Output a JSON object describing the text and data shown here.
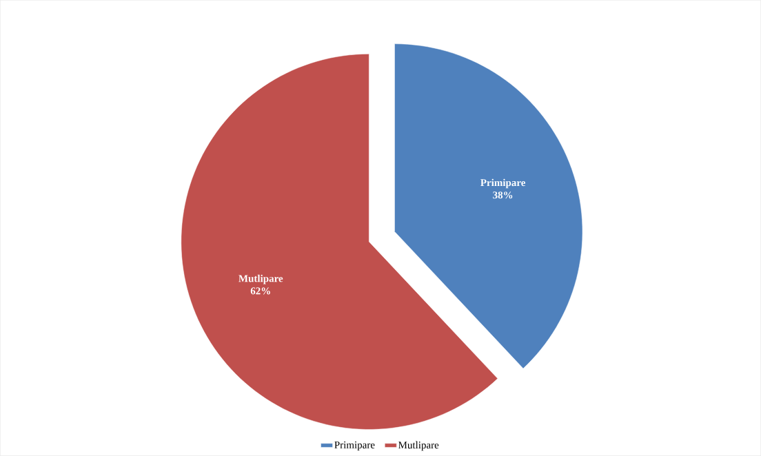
{
  "chart_data": {
    "type": "pie",
    "categories": [
      "Primipare",
      "Mutlipare"
    ],
    "values": [
      38,
      62
    ],
    "colors": [
      "#4f81bd",
      "#c0504d"
    ],
    "value_labels": [
      "38%",
      "62%"
    ],
    "legend": "bottom"
  }
}
